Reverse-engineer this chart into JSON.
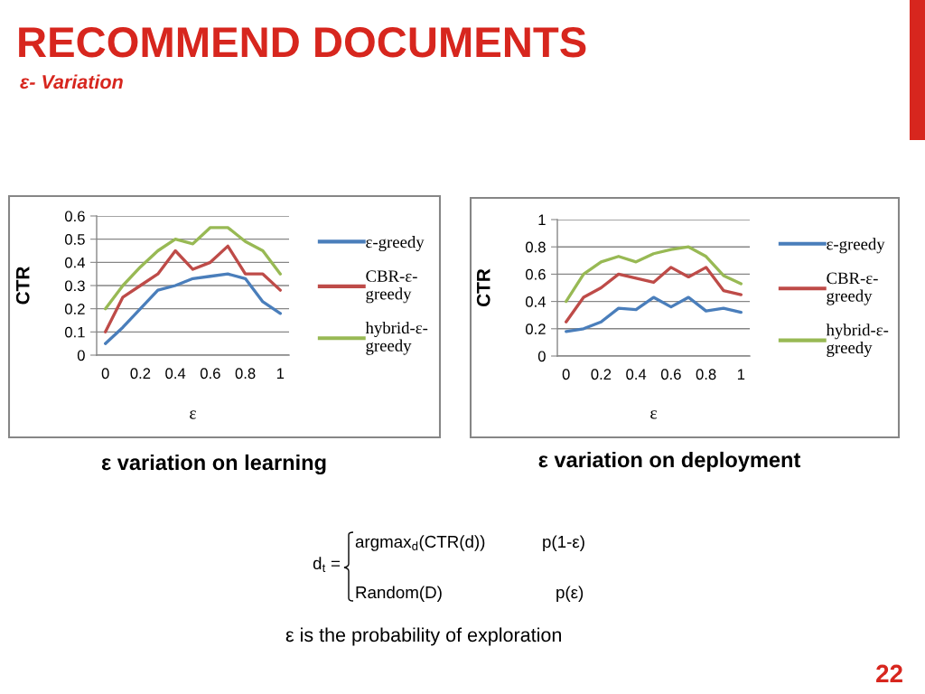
{
  "chart_data": [
    {
      "type": "line",
      "title": "RECOMMEND DOCUMENTS",
      "subtitle": "ε- Variation",
      "xlabel": "ε",
      "ylabel": "CTR",
      "x": [
        0,
        0.1,
        0.2,
        0.3,
        0.4,
        0.5,
        0.6,
        0.7,
        0.8,
        0.9,
        1
      ],
      "series": [
        {
          "name": "ε-greedy",
          "color": "#4a7ebb",
          "values": [
            0.05,
            0.12,
            0.2,
            0.28,
            0.3,
            0.33,
            0.34,
            0.35,
            0.33,
            0.23,
            0.18
          ]
        },
        {
          "name": "CBR-ε-greedy",
          "color": "#be4b48",
          "values": [
            0.1,
            0.25,
            0.3,
            0.35,
            0.45,
            0.37,
            0.4,
            0.47,
            0.35,
            0.35,
            0.28
          ]
        },
        {
          "name": "hybrid-ε-greedy",
          "color": "#98b954",
          "values": [
            0.2,
            0.3,
            0.38,
            0.45,
            0.5,
            0.48,
            0.55,
            0.55,
            0.49,
            0.45,
            0.35
          ]
        }
      ],
      "xlim": [
        -0.05,
        1.05
      ],
      "xticks": [
        0,
        0.2,
        0.4,
        0.6,
        0.8,
        1
      ],
      "ylim": [
        0,
        0.6
      ],
      "yticks": [
        0,
        0.1,
        0.2,
        0.3,
        0.4,
        0.5,
        0.6
      ],
      "grid": "y",
      "legend": "right",
      "annotations": [
        "ε variation on learning"
      ]
    },
    {
      "type": "line",
      "xlabel": "ε",
      "ylabel": "CTR",
      "x": [
        0,
        0.1,
        0.2,
        0.3,
        0.4,
        0.5,
        0.6,
        0.7,
        0.8,
        0.9,
        1
      ],
      "series": [
        {
          "name": "ε-greedy",
          "color": "#4a7ebb",
          "values": [
            0.18,
            0.2,
            0.25,
            0.35,
            0.34,
            0.43,
            0.36,
            0.43,
            0.33,
            0.35,
            0.32
          ]
        },
        {
          "name": "CBR-ε-greedy",
          "color": "#be4b48",
          "values": [
            0.25,
            0.43,
            0.5,
            0.6,
            0.57,
            0.54,
            0.65,
            0.58,
            0.65,
            0.48,
            0.45
          ]
        },
        {
          "name": "hybrid-ε-greedy",
          "color": "#98b954",
          "values": [
            0.4,
            0.6,
            0.69,
            0.73,
            0.69,
            0.75,
            0.78,
            0.8,
            0.73,
            0.59,
            0.53
          ]
        }
      ],
      "xlim": [
        -0.05,
        1.05
      ],
      "xticks": [
        0,
        0.2,
        0.4,
        0.6,
        0.8,
        1
      ],
      "ylim": [
        0,
        1
      ],
      "yticks": [
        0,
        0.2,
        0.4,
        0.6,
        0.8,
        1
      ],
      "grid": "y",
      "legend": "right",
      "annotations": [
        "ε variation on deployment",
        "d$_{t}$ =",
        "argmax$_{d}$(CTR(d))",
        "p(1-ε)",
        "Random(D)",
        "p(ε)",
        "ε is the probability of exploration",
        "22"
      ]
    }
  ]
}
